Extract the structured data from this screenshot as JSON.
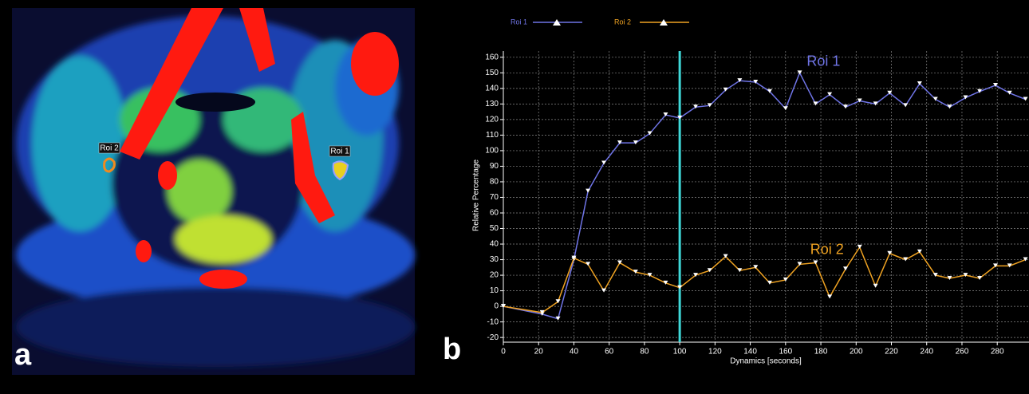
{
  "image_panel": {
    "label": "a",
    "roi_labels": [
      "Roi 2",
      "Roi 1"
    ]
  },
  "chart_data": {
    "type": "line",
    "panel_label": "b",
    "xlabel": "Dynamics [seconds]",
    "ylabel": "Relative Percentage",
    "x": [
      0,
      22,
      31,
      40,
      48,
      57,
      66,
      75,
      83,
      92,
      100,
      109,
      117,
      126,
      134,
      143,
      151,
      160,
      168,
      177,
      185,
      194,
      202,
      211,
      219,
      228,
      236,
      245,
      253,
      262,
      270,
      279,
      287,
      296
    ],
    "series": [
      {
        "name": "Roi 1",
        "color": "#6f74e6",
        "values": [
          0,
          -5,
          -8,
          30,
          74,
          92,
          105,
          105,
          111,
          123,
          121,
          128,
          129,
          139,
          145,
          144,
          138,
          127,
          150,
          130,
          136,
          128,
          132,
          130,
          137,
          129,
          143,
          133,
          128,
          134,
          138,
          142,
          137,
          133
        ]
      },
      {
        "name": "Roi 2",
        "color": "#f0a322",
        "values": [
          0,
          -4,
          3,
          31,
          27,
          10,
          28,
          22,
          20,
          15,
          12,
          20,
          23,
          32,
          23,
          25,
          15,
          17,
          27,
          28,
          6,
          24,
          38,
          13,
          34,
          30,
          35,
          20,
          18,
          20,
          18,
          26,
          26,
          30
        ]
      }
    ],
    "annotations": [
      {
        "text": "Roi 1",
        "x": 172,
        "y": 157
      },
      {
        "text": "Roi 2",
        "x": 174,
        "y": 36
      }
    ],
    "marker_x": 100,
    "marker_color": "#3fd8d8",
    "xlim": [
      0,
      298
    ],
    "ylim": [
      -23,
      164
    ],
    "xticks": [
      0,
      20,
      40,
      60,
      80,
      100,
      120,
      140,
      160,
      180,
      200,
      220,
      240,
      260,
      280
    ],
    "yticks": [
      -20,
      -10,
      0,
      10,
      20,
      30,
      40,
      50,
      60,
      70,
      80,
      90,
      100,
      110,
      120,
      130,
      140,
      150,
      160
    ],
    "grid": true,
    "legend": "top"
  }
}
